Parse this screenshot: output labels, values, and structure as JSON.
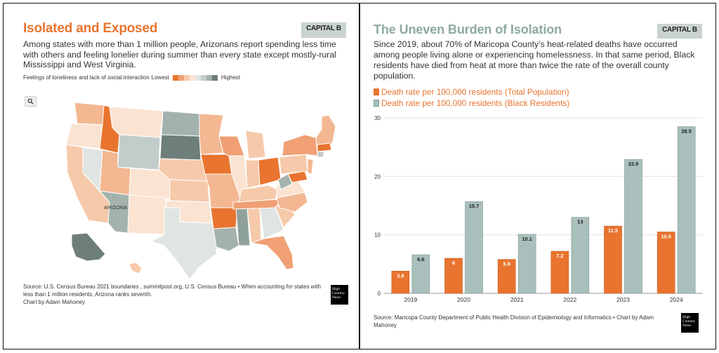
{
  "left_panel": {
    "title": "Isolated and Exposed",
    "subtitle": "Among states with more than 1 million people, Arizonans report spending less time with others and feeling lonelier during summer than every state except mostly-rural Mississippi and West Virginia.",
    "logo_text": "CAPITAL B",
    "legend": {
      "label": "Feelings of loneliness and lack of social interaction",
      "low_label": "Lowest",
      "high_label": "Highest",
      "scale_colors": [
        "#e8742f",
        "#f0a074",
        "#f6c9aa",
        "#fbe3d2",
        "#e0e4e3",
        "#c2ccca",
        "#a4b2ae",
        "#6e7e7a"
      ]
    },
    "zoom_icon": "search-icon",
    "map_label": "ARIZONA",
    "source": "Source: U.S. Census Bureau 2021 boundaries , summitpost.org, U.S. Census Bureau • When accounting for states with less than 1 million residents, Arizona ranks seventh.",
    "credit": "Chart by Adam Mahoney",
    "footer_logo": "High Country News"
  },
  "right_panel": {
    "title": "The Uneven Burden of Isolation",
    "logo_text": "CAPITAL B",
    "subtitle": "Since 2019, about 70% of Maricopa County’s heat-related deaths have occurred among people living alone or experiencing homelessness. In that same period, Black residents have died from heat at more than twice the rate of the overall county population.",
    "source": "Source: Maricopa County Department of Public Health Division of Epidemiology and Informatics • Chart by Adam Mahoney",
    "footer_logo": "High Country News"
  },
  "colors": {
    "orange": "#e8742f",
    "teal": "#a9bfbb",
    "title_teal": "#8fa8a3"
  },
  "chart_data": {
    "type": "bar",
    "categories": [
      "2019",
      "2020",
      "2021",
      "2022",
      "2023",
      "2024"
    ],
    "series": [
      {
        "name": "Death rate per 100,000 residents (Total Population)",
        "values": [
          3.8,
          6,
          5.8,
          7.2,
          11.5,
          10.5
        ],
        "color": "#e8742f"
      },
      {
        "name": "Death rate per 100,000 residents (Black Residents)",
        "values": [
          6.6,
          15.7,
          10.1,
          13,
          22.9,
          28.5
        ],
        "color": "#a9bfbb"
      }
    ],
    "data_labels": [
      [
        "3.8",
        "6",
        "5.8",
        "7.2",
        "11.5",
        "10.5"
      ],
      [
        "6.6",
        "15.7",
        "10.1",
        "13",
        "22.9",
        "28.5"
      ]
    ],
    "yticks": [
      "0",
      "10",
      "20",
      "30"
    ],
    "ylim": [
      0,
      30
    ],
    "grid": "horizontal",
    "legend_position": "top-left"
  }
}
